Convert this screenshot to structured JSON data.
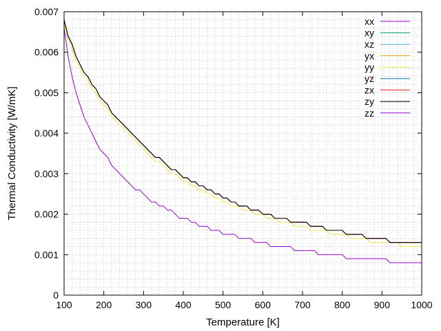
{
  "chart_data": {
    "type": "line",
    "xlabel": "Temperature [K]",
    "ylabel": "Thermal Conductivity [W/mK]",
    "xlim": [
      100,
      1000
    ],
    "ylim": [
      0,
      0.007
    ],
    "x_ticks": [
      {
        "value": 100,
        "label": "100"
      },
      {
        "value": 200,
        "label": "200"
      },
      {
        "value": 300,
        "label": "300"
      },
      {
        "value": 400,
        "label": "400"
      },
      {
        "value": 500,
        "label": "500"
      },
      {
        "value": 600,
        "label": "600"
      },
      {
        "value": 700,
        "label": "700"
      },
      {
        "value": 800,
        "label": "800"
      },
      {
        "value": 900,
        "label": "900"
      },
      {
        "value": 1000,
        "label": "1000"
      }
    ],
    "y_ticks": [
      {
        "value": 0,
        "label": "0"
      },
      {
        "value": 0.001,
        "label": "0.001"
      },
      {
        "value": 0.002,
        "label": "0.002"
      },
      {
        "value": 0.003,
        "label": "0.003"
      },
      {
        "value": 0.004,
        "label": "0.004"
      },
      {
        "value": 0.005,
        "label": "0.005"
      },
      {
        "value": 0.006,
        "label": "0.006"
      },
      {
        "value": 0.007,
        "label": "0.007"
      }
    ],
    "grid": true,
    "legend_position": "top-right",
    "x": [
      100,
      110,
      120,
      130,
      140,
      150,
      160,
      170,
      180,
      190,
      200,
      210,
      220,
      230,
      240,
      250,
      260,
      270,
      280,
      290,
      300,
      310,
      320,
      330,
      340,
      350,
      360,
      370,
      380,
      390,
      400,
      410,
      420,
      430,
      440,
      450,
      460,
      470,
      480,
      490,
      500,
      510,
      520,
      530,
      540,
      550,
      560,
      570,
      580,
      590,
      600,
      610,
      620,
      630,
      640,
      650,
      660,
      670,
      680,
      690,
      700,
      710,
      720,
      730,
      740,
      750,
      760,
      770,
      780,
      790,
      800,
      810,
      820,
      830,
      840,
      850,
      860,
      870,
      880,
      890,
      900,
      910,
      920,
      930,
      940,
      950,
      960,
      970,
      980,
      990,
      1000
    ],
    "series": [
      {
        "name": "xx",
        "color": "#9400d3",
        "values": [
          0.0068,
          0.0064,
          0.0062,
          0.0059,
          0.0057,
          0.0055,
          0.0054,
          0.0052,
          0.0051,
          0.0049,
          0.0048,
          0.0047,
          0.0045,
          0.0044,
          0.0043,
          0.0042,
          0.0041,
          0.004,
          0.0039,
          0.0038,
          0.0037,
          0.0036,
          0.0035,
          0.0034,
          0.0034,
          0.0033,
          0.0032,
          0.0031,
          0.0031,
          0.003,
          0.0029,
          0.0029,
          0.0028,
          0.0028,
          0.0027,
          0.0027,
          0.0026,
          0.0026,
          0.0025,
          0.0025,
          0.0024,
          0.0024,
          0.0023,
          0.0023,
          0.0022,
          0.0022,
          0.0022,
          0.0021,
          0.0021,
          0.0021,
          0.002,
          0.002,
          0.002,
          0.0019,
          0.0019,
          0.0019,
          0.0019,
          0.0018,
          0.0018,
          0.0018,
          0.0018,
          0.0018,
          0.0017,
          0.0017,
          0.0017,
          0.0017,
          0.0016,
          0.0016,
          0.0016,
          0.0016,
          0.0016,
          0.0015,
          0.0015,
          0.0015,
          0.0015,
          0.0015,
          0.0014,
          0.0014,
          0.0014,
          0.0014,
          0.0014,
          0.0014,
          0.0013,
          0.0013,
          0.0013,
          0.0013,
          0.0013,
          0.0013,
          0.0013,
          0.0013,
          0.0013
        ]
      },
      {
        "name": "xy",
        "color": "#009e73",
        "values": [
          0.0068,
          0.0064,
          0.0062,
          0.0059,
          0.0057,
          0.0055,
          0.0054,
          0.0052,
          0.0051,
          0.0049,
          0.0048,
          0.0047,
          0.0045,
          0.0044,
          0.0043,
          0.0042,
          0.0041,
          0.004,
          0.0039,
          0.0038,
          0.0037,
          0.0036,
          0.0035,
          0.0034,
          0.0034,
          0.0033,
          0.0032,
          0.0031,
          0.0031,
          0.003,
          0.0029,
          0.0029,
          0.0028,
          0.0028,
          0.0027,
          0.0027,
          0.0026,
          0.0026,
          0.0025,
          0.0025,
          0.0024,
          0.0024,
          0.0023,
          0.0023,
          0.0022,
          0.0022,
          0.0022,
          0.0021,
          0.0021,
          0.0021,
          0.002,
          0.002,
          0.002,
          0.0019,
          0.0019,
          0.0019,
          0.0019,
          0.0018,
          0.0018,
          0.0018,
          0.0018,
          0.0018,
          0.0017,
          0.0017,
          0.0017,
          0.0017,
          0.0016,
          0.0016,
          0.0016,
          0.0016,
          0.0016,
          0.0015,
          0.0015,
          0.0015,
          0.0015,
          0.0015,
          0.0014,
          0.0014,
          0.0014,
          0.0014,
          0.0014,
          0.0014,
          0.0013,
          0.0013,
          0.0013,
          0.0013,
          0.0013,
          0.0013,
          0.0013,
          0.0013,
          0.0013
        ]
      },
      {
        "name": "xz",
        "color": "#56b4e9",
        "values": [
          0.0068,
          0.0064,
          0.0062,
          0.0059,
          0.0057,
          0.0055,
          0.0054,
          0.0052,
          0.0051,
          0.0049,
          0.0048,
          0.0047,
          0.0045,
          0.0044,
          0.0043,
          0.0042,
          0.0041,
          0.004,
          0.0039,
          0.0038,
          0.0037,
          0.0036,
          0.0035,
          0.0034,
          0.0034,
          0.0033,
          0.0032,
          0.0031,
          0.0031,
          0.003,
          0.0029,
          0.0029,
          0.0028,
          0.0028,
          0.0027,
          0.0027,
          0.0026,
          0.0026,
          0.0025,
          0.0025,
          0.0024,
          0.0024,
          0.0023,
          0.0023,
          0.0022,
          0.0022,
          0.0022,
          0.0021,
          0.0021,
          0.0021,
          0.002,
          0.002,
          0.002,
          0.0019,
          0.0019,
          0.0019,
          0.0019,
          0.0018,
          0.0018,
          0.0018,
          0.0018,
          0.0018,
          0.0017,
          0.0017,
          0.0017,
          0.0017,
          0.0016,
          0.0016,
          0.0016,
          0.0016,
          0.0016,
          0.0015,
          0.0015,
          0.0015,
          0.0015,
          0.0015,
          0.0014,
          0.0014,
          0.0014,
          0.0014,
          0.0014,
          0.0014,
          0.0013,
          0.0013,
          0.0013,
          0.0013,
          0.0013,
          0.0013,
          0.0013,
          0.0013,
          0.0013
        ]
      },
      {
        "name": "yx",
        "color": "#e69f00",
        "values": [
          0.0068,
          0.0064,
          0.0062,
          0.0059,
          0.0057,
          0.0055,
          0.0054,
          0.0052,
          0.0051,
          0.0049,
          0.0048,
          0.0047,
          0.0045,
          0.0044,
          0.0043,
          0.0042,
          0.0041,
          0.004,
          0.0039,
          0.0038,
          0.0037,
          0.0036,
          0.0035,
          0.0034,
          0.0034,
          0.0033,
          0.0032,
          0.0031,
          0.0031,
          0.003,
          0.0029,
          0.0029,
          0.0028,
          0.0028,
          0.0027,
          0.0027,
          0.0026,
          0.0026,
          0.0025,
          0.0025,
          0.0024,
          0.0024,
          0.0023,
          0.0023,
          0.0022,
          0.0022,
          0.0022,
          0.0021,
          0.0021,
          0.0021,
          0.002,
          0.002,
          0.002,
          0.0019,
          0.0019,
          0.0019,
          0.0019,
          0.0018,
          0.0018,
          0.0018,
          0.0018,
          0.0018,
          0.0017,
          0.0017,
          0.0017,
          0.0017,
          0.0016,
          0.0016,
          0.0016,
          0.0016,
          0.0016,
          0.0015,
          0.0015,
          0.0015,
          0.0015,
          0.0015,
          0.0014,
          0.0014,
          0.0014,
          0.0014,
          0.0014,
          0.0014,
          0.0013,
          0.0013,
          0.0013,
          0.0013,
          0.0013,
          0.0013,
          0.0013,
          0.0013,
          0.0013
        ]
      },
      {
        "name": "yy",
        "color": "#f0e442",
        "values": [
          0.0067,
          0.0063,
          0.0061,
          0.0058,
          0.0056,
          0.0054,
          0.0053,
          0.0051,
          0.005,
          0.0048,
          0.0047,
          0.0046,
          0.0044,
          0.0043,
          0.0042,
          0.0041,
          0.004,
          0.0039,
          0.0038,
          0.0037,
          0.0036,
          0.0035,
          0.0034,
          0.0033,
          0.0033,
          0.0032,
          0.0031,
          0.003,
          0.003,
          0.0029,
          0.0028,
          0.0028,
          0.0027,
          0.0027,
          0.0026,
          0.0026,
          0.0025,
          0.0025,
          0.0024,
          0.0024,
          0.0023,
          0.0023,
          0.0022,
          0.0022,
          0.0022,
          0.0021,
          0.0021,
          0.0021,
          0.002,
          0.002,
          0.002,
          0.0019,
          0.0019,
          0.0019,
          0.0018,
          0.0018,
          0.0018,
          0.0018,
          0.0017,
          0.0017,
          0.0017,
          0.0017,
          0.0016,
          0.0016,
          0.0016,
          0.0016,
          0.0016,
          0.0015,
          0.0015,
          0.0015,
          0.0015,
          0.0015,
          0.0014,
          0.0014,
          0.0014,
          0.0014,
          0.0014,
          0.0013,
          0.0013,
          0.0013,
          0.0013,
          0.0013,
          0.0013,
          0.0013,
          0.0013,
          0.0012,
          0.0012,
          0.0012,
          0.0012,
          0.0012,
          0.0012
        ]
      },
      {
        "name": "yz",
        "color": "#0072b2",
        "values": [
          0.0068,
          0.0064,
          0.0062,
          0.0059,
          0.0057,
          0.0055,
          0.0054,
          0.0052,
          0.0051,
          0.0049,
          0.0048,
          0.0047,
          0.0045,
          0.0044,
          0.0043,
          0.0042,
          0.0041,
          0.004,
          0.0039,
          0.0038,
          0.0037,
          0.0036,
          0.0035,
          0.0034,
          0.0034,
          0.0033,
          0.0032,
          0.0031,
          0.0031,
          0.003,
          0.0029,
          0.0029,
          0.0028,
          0.0028,
          0.0027,
          0.0027,
          0.0026,
          0.0026,
          0.0025,
          0.0025,
          0.0024,
          0.0024,
          0.0023,
          0.0023,
          0.0022,
          0.0022,
          0.0022,
          0.0021,
          0.0021,
          0.0021,
          0.002,
          0.002,
          0.002,
          0.0019,
          0.0019,
          0.0019,
          0.0019,
          0.0018,
          0.0018,
          0.0018,
          0.0018,
          0.0018,
          0.0017,
          0.0017,
          0.0017,
          0.0017,
          0.0016,
          0.0016,
          0.0016,
          0.0016,
          0.0016,
          0.0015,
          0.0015,
          0.0015,
          0.0015,
          0.0015,
          0.0014,
          0.0014,
          0.0014,
          0.0014,
          0.0014,
          0.0014,
          0.0013,
          0.0013,
          0.0013,
          0.0013,
          0.0013,
          0.0013,
          0.0013,
          0.0013,
          0.0013
        ]
      },
      {
        "name": "zx",
        "color": "#e51e10",
        "values": [
          0.0068,
          0.0064,
          0.0062,
          0.0059,
          0.0057,
          0.0055,
          0.0054,
          0.0052,
          0.0051,
          0.0049,
          0.0048,
          0.0047,
          0.0045,
          0.0044,
          0.0043,
          0.0042,
          0.0041,
          0.004,
          0.0039,
          0.0038,
          0.0037,
          0.0036,
          0.0035,
          0.0034,
          0.0034,
          0.0033,
          0.0032,
          0.0031,
          0.0031,
          0.003,
          0.0029,
          0.0029,
          0.0028,
          0.0028,
          0.0027,
          0.0027,
          0.0026,
          0.0026,
          0.0025,
          0.0025,
          0.0024,
          0.0024,
          0.0023,
          0.0023,
          0.0022,
          0.0022,
          0.0022,
          0.0021,
          0.0021,
          0.0021,
          0.002,
          0.002,
          0.002,
          0.0019,
          0.0019,
          0.0019,
          0.0019,
          0.0018,
          0.0018,
          0.0018,
          0.0018,
          0.0018,
          0.0017,
          0.0017,
          0.0017,
          0.0017,
          0.0016,
          0.0016,
          0.0016,
          0.0016,
          0.0016,
          0.0015,
          0.0015,
          0.0015,
          0.0015,
          0.0015,
          0.0014,
          0.0014,
          0.0014,
          0.0014,
          0.0014,
          0.0014,
          0.0013,
          0.0013,
          0.0013,
          0.0013,
          0.0013,
          0.0013,
          0.0013,
          0.0013,
          0.0013
        ]
      },
      {
        "name": "zy",
        "color": "#000000",
        "values": [
          0.0068,
          0.0064,
          0.0062,
          0.0059,
          0.0057,
          0.0055,
          0.0054,
          0.0052,
          0.0051,
          0.0049,
          0.0048,
          0.0047,
          0.0045,
          0.0044,
          0.0043,
          0.0042,
          0.0041,
          0.004,
          0.0039,
          0.0038,
          0.0037,
          0.0036,
          0.0035,
          0.0034,
          0.0034,
          0.0033,
          0.0032,
          0.0031,
          0.0031,
          0.003,
          0.0029,
          0.0029,
          0.0028,
          0.0028,
          0.0027,
          0.0027,
          0.0026,
          0.0026,
          0.0025,
          0.0025,
          0.0024,
          0.0024,
          0.0023,
          0.0023,
          0.0022,
          0.0022,
          0.0022,
          0.0021,
          0.0021,
          0.0021,
          0.002,
          0.002,
          0.002,
          0.0019,
          0.0019,
          0.0019,
          0.0019,
          0.0018,
          0.0018,
          0.0018,
          0.0018,
          0.0018,
          0.0017,
          0.0017,
          0.0017,
          0.0017,
          0.0016,
          0.0016,
          0.0016,
          0.0016,
          0.0016,
          0.0015,
          0.0015,
          0.0015,
          0.0015,
          0.0015,
          0.0014,
          0.0014,
          0.0014,
          0.0014,
          0.0014,
          0.0014,
          0.0013,
          0.0013,
          0.0013,
          0.0013,
          0.0013,
          0.0013,
          0.0013,
          0.0013,
          0.0013
        ]
      },
      {
        "name": "zz",
        "color": "#9400d3",
        "values": [
          0.0066,
          0.0059,
          0.0054,
          0.005,
          0.0047,
          0.0044,
          0.0042,
          0.004,
          0.0038,
          0.0036,
          0.0035,
          0.0034,
          0.0032,
          0.0031,
          0.003,
          0.0029,
          0.0028,
          0.0027,
          0.0026,
          0.0026,
          0.0025,
          0.0024,
          0.0023,
          0.0023,
          0.0022,
          0.0022,
          0.0021,
          0.0021,
          0.002,
          0.0019,
          0.0019,
          0.0019,
          0.0018,
          0.0018,
          0.0017,
          0.0017,
          0.0017,
          0.0016,
          0.0016,
          0.0016,
          0.0015,
          0.0015,
          0.0015,
          0.0015,
          0.0014,
          0.0014,
          0.0014,
          0.0014,
          0.0013,
          0.0013,
          0.0013,
          0.0013,
          0.0012,
          0.0012,
          0.0012,
          0.0012,
          0.0012,
          0.0012,
          0.0011,
          0.0011,
          0.0011,
          0.0011,
          0.0011,
          0.0011,
          0.001,
          0.001,
          0.001,
          0.001,
          0.001,
          0.001,
          0.001,
          0.0009,
          0.0009,
          0.0009,
          0.0009,
          0.0009,
          0.0009,
          0.0009,
          0.0009,
          0.0009,
          0.0009,
          0.0009,
          0.0008,
          0.0008,
          0.0008,
          0.0008,
          0.0008,
          0.0008,
          0.0008,
          0.0008,
          0.0008
        ]
      }
    ]
  }
}
